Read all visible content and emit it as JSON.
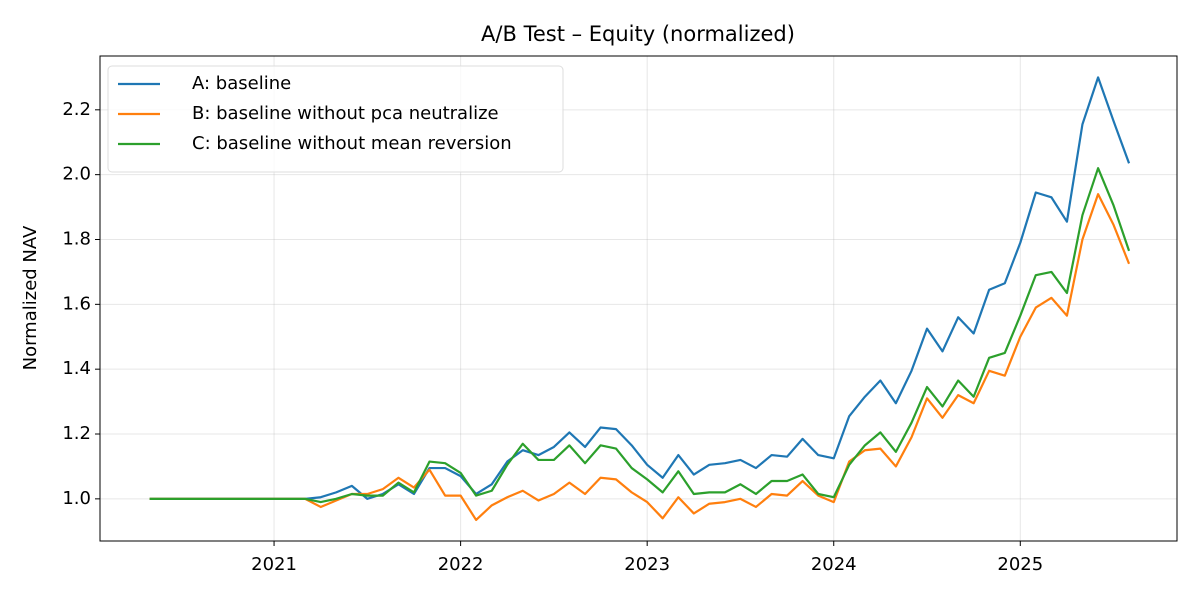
{
  "chart_data": {
    "type": "line",
    "title": "A/B Test – Equity (normalized)",
    "y_label": "Normalized NAV",
    "x": [
      2020.333,
      2020.417,
      2020.5,
      2020.583,
      2020.667,
      2020.75,
      2020.833,
      2020.917,
      2021.0,
      2021.083,
      2021.167,
      2021.25,
      2021.333,
      2021.417,
      2021.5,
      2021.583,
      2021.667,
      2021.75,
      2021.833,
      2021.917,
      2022.0,
      2022.083,
      2022.167,
      2022.25,
      2022.333,
      2022.417,
      2022.5,
      2022.583,
      2022.667,
      2022.75,
      2022.833,
      2022.917,
      2023.0,
      2023.083,
      2023.167,
      2023.25,
      2023.333,
      2023.417,
      2023.5,
      2023.583,
      2023.667,
      2023.75,
      2023.833,
      2023.917,
      2024.0,
      2024.083,
      2024.167,
      2024.25,
      2024.333,
      2024.417,
      2024.5,
      2024.583,
      2024.667,
      2024.75,
      2024.833,
      2024.917,
      2025.0,
      2025.083,
      2025.167,
      2025.25,
      2025.333,
      2025.417,
      2025.5,
      2025.583
    ],
    "series": [
      {
        "name": "A: baseline",
        "color": "#1f77b4",
        "values": [
          1.0,
          1.0,
          1.0,
          1.0,
          1.0,
          1.0,
          1.0,
          1.0,
          1.0,
          1.0,
          1.0,
          1.005,
          1.02,
          1.04,
          1.0,
          1.015,
          1.045,
          1.015,
          1.095,
          1.095,
          1.07,
          1.015,
          1.045,
          1.115,
          1.15,
          1.135,
          1.16,
          1.205,
          1.16,
          1.22,
          1.215,
          1.165,
          1.105,
          1.065,
          1.135,
          1.075,
          1.105,
          1.11,
          1.12,
          1.095,
          1.135,
          1.13,
          1.185,
          1.135,
          1.125,
          1.255,
          1.315,
          1.365,
          1.295,
          1.395,
          1.525,
          1.455,
          1.56,
          1.51,
          1.645,
          1.665,
          1.79,
          1.945,
          1.93,
          1.855,
          2.155,
          2.3,
          2.165,
          2.035
        ]
      },
      {
        "name": "B: baseline without pca neutralize",
        "color": "#ff7f0e",
        "values": [
          1.0,
          1.0,
          1.0,
          1.0,
          1.0,
          1.0,
          1.0,
          1.0,
          1.0,
          1.0,
          1.0,
          0.975,
          0.995,
          1.015,
          1.015,
          1.03,
          1.065,
          1.035,
          1.09,
          1.01,
          1.01,
          0.935,
          0.98,
          1.005,
          1.025,
          0.995,
          1.015,
          1.05,
          1.015,
          1.065,
          1.06,
          1.02,
          0.99,
          0.94,
          1.005,
          0.955,
          0.985,
          0.99,
          1.0,
          0.975,
          1.015,
          1.01,
          1.055,
          1.01,
          0.99,
          1.115,
          1.15,
          1.155,
          1.1,
          1.19,
          1.31,
          1.25,
          1.32,
          1.295,
          1.395,
          1.38,
          1.5,
          1.59,
          1.62,
          1.565,
          1.8,
          1.94,
          1.845,
          1.725
        ]
      },
      {
        "name": "C: baseline without mean reversion",
        "color": "#2ca02c",
        "values": [
          1.0,
          1.0,
          1.0,
          1.0,
          1.0,
          1.0,
          1.0,
          1.0,
          1.0,
          1.0,
          1.0,
          0.99,
          1.0,
          1.015,
          1.01,
          1.01,
          1.05,
          1.02,
          1.115,
          1.11,
          1.08,
          1.01,
          1.025,
          1.105,
          1.17,
          1.12,
          1.12,
          1.165,
          1.11,
          1.165,
          1.155,
          1.095,
          1.06,
          1.02,
          1.085,
          1.015,
          1.02,
          1.02,
          1.045,
          1.015,
          1.055,
          1.055,
          1.075,
          1.015,
          1.005,
          1.105,
          1.165,
          1.205,
          1.145,
          1.235,
          1.345,
          1.285,
          1.365,
          1.315,
          1.435,
          1.45,
          1.565,
          1.69,
          1.7,
          1.635,
          1.875,
          2.02,
          1.905,
          1.765
        ]
      }
    ],
    "xlim": [
      2020.067,
      2025.84
    ],
    "xticks": [
      2021,
      2022,
      2023,
      2024,
      2025
    ],
    "ylim": [
      0.87,
      2.366
    ],
    "yticks": [
      {
        "value": 1,
        "label": "1.0"
      },
      1.2,
      1.4,
      1.6,
      1.8,
      {
        "value": 2,
        "label": "2.0"
      },
      2.2
    ],
    "grid": true,
    "legend": "upper-left"
  }
}
